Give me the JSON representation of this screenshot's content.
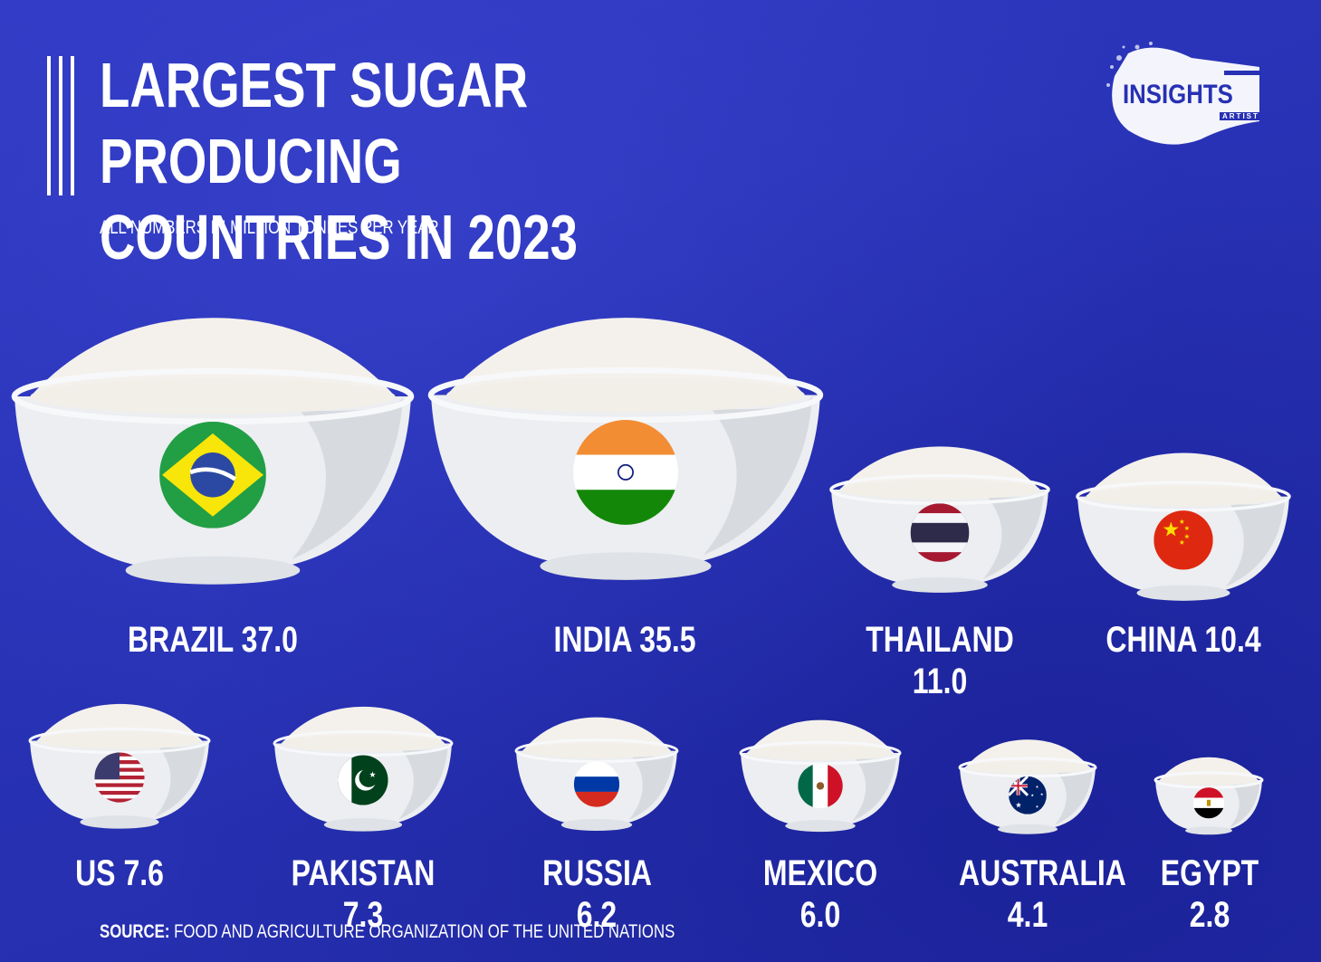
{
  "header": {
    "title": "LARGEST SUGAR PRODUCING\nCOUNTRIES IN 2023",
    "subtitle": "ALL NUMBERS IN MILLION TONNES PER YEAR"
  },
  "logo": {
    "text": "INSIGHTS",
    "sub": "ARTIST"
  },
  "source": {
    "prefix": "SOURCE:",
    "text": " FOOD AND AGRICULTURE ORGANIZATION OF THE UNITED NATIONS"
  },
  "colors": {
    "background": "#2a34b8",
    "text": "#ffffff",
    "bowl": "#eef0f2",
    "sugar": "#f4f1ec"
  },
  "chart_data": {
    "type": "bar",
    "title": "LARGEST SUGAR PRODUCING COUNTRIES IN 2023",
    "unit": "million tonnes per year",
    "categories": [
      "BRAZIL",
      "INDIA",
      "THAILAND",
      "CHINA",
      "US",
      "PAKISTAN",
      "RUSSIA",
      "MEXICO",
      "AUSTRALIA",
      "EGYPT"
    ],
    "values": [
      37.0,
      35.5,
      11.0,
      10.4,
      7.6,
      7.3,
      6.2,
      6.0,
      4.1,
      2.8
    ],
    "value_labels": [
      "37.0",
      "35.5",
      "11.0",
      "10.4",
      "7.6",
      "7.3",
      "6.2",
      "6.0",
      "4.1",
      "2.8"
    ],
    "flag_icons": [
      "brazil-flag-icon",
      "india-flag-icon",
      "thailand-flag-icon",
      "china-flag-icon",
      "us-flag-icon",
      "pakistan-flag-icon",
      "russia-flag-icon",
      "mexico-flag-icon",
      "australia-flag-icon",
      "egypt-flag-icon"
    ]
  }
}
